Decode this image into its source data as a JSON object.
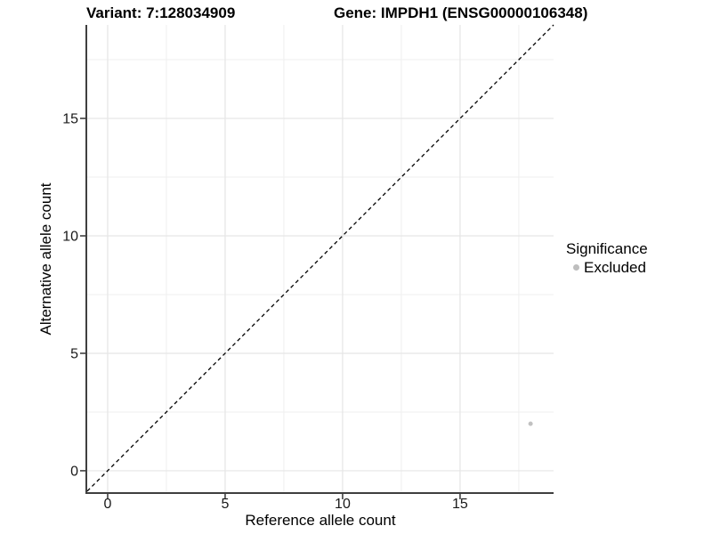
{
  "chart_data": {
    "type": "scatter",
    "title_left": "Variant: 7:128034909",
    "title_right": "Gene: IMPDH1 (ENSG00000106348)",
    "xlabel": "Reference allele count",
    "ylabel": "Alternative allele count",
    "xlim": [
      -0.87,
      18.98
    ],
    "ylim": [
      -0.95,
      18.98
    ],
    "xticks": [
      0,
      5,
      10,
      15
    ],
    "yticks": [
      0,
      5,
      10,
      15
    ],
    "xticks_minor": [
      2.5,
      7.5,
      12.5,
      17.5
    ],
    "yticks_minor": [
      2.5,
      7.5,
      12.5,
      17.5
    ],
    "grid": "major+minor",
    "series": [
      {
        "name": "Excluded",
        "marker": "circle",
        "color": "#bebebe",
        "points": [
          {
            "x": 18,
            "y": 2
          }
        ]
      }
    ],
    "reference_line": {
      "type": "identity",
      "equation": "y = x",
      "slope": 1,
      "intercept": 0,
      "style": "dashed",
      "color": "#000000"
    },
    "legend": {
      "title": "Significance",
      "position": "right",
      "entries": [
        {
          "label": "Excluded",
          "color": "#bebebe",
          "marker": "circle"
        }
      ]
    },
    "colors": {
      "background": "#ffffff",
      "grid_major": "#e5e5e5",
      "grid_minor": "#efefef",
      "axis_line": "#3f3f3f",
      "tick_mark": "#333333",
      "tick_label": "#1a1a1a",
      "point": "#c1c1c1"
    }
  }
}
